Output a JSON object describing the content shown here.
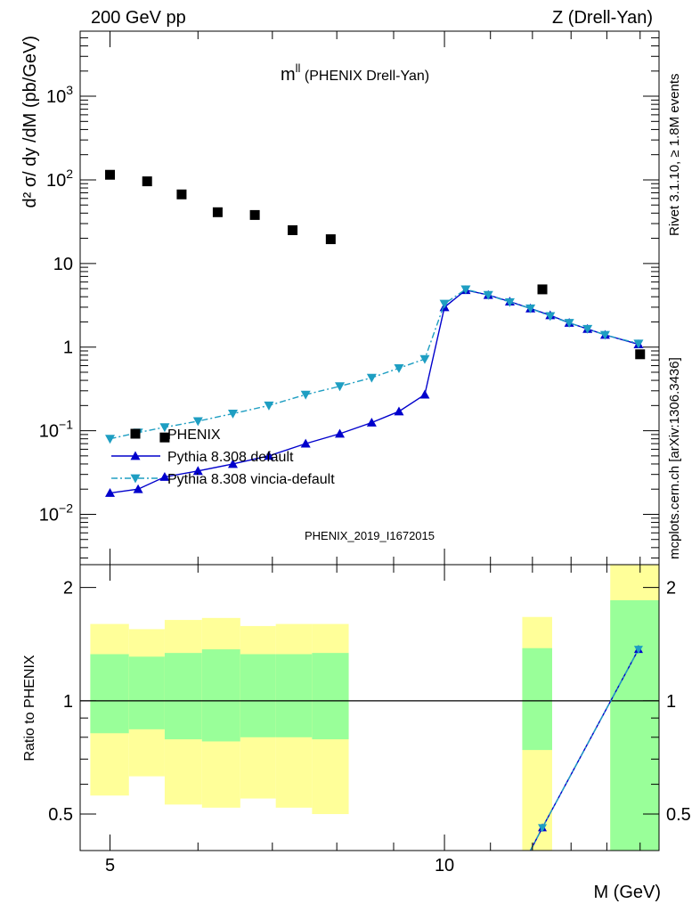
{
  "header": {
    "left": "200 GeV pp",
    "right": "Z (Drell-Yan)"
  },
  "side_labels": {
    "rivet": "Rivet 3.1.10, ≥ 1.8M events",
    "mcplots": "mcplots.cern.ch [arXiv:1306.3436]"
  },
  "watermark": "PHENIX_2019_I1672015",
  "chart_data": [
    {
      "type": "scatter",
      "panel": "main",
      "title_main": "m",
      "title_sup": "ll",
      "title_rest": " (PHENIX Drell-Yan)",
      "ylabel": "d² σ/ dy /dM (pb/GeV)",
      "yscale": "log",
      "ylim": [
        0.0025,
        6000
      ],
      "xscale": "log",
      "xlim": [
        4.7,
        15.6
      ],
      "yticks": [
        {
          "value": 0.01,
          "base": "10",
          "exp": "−2"
        },
        {
          "value": 0.1,
          "base": "10",
          "exp": "−1"
        },
        {
          "value": 1,
          "base": "1",
          "exp": ""
        },
        {
          "value": 10,
          "base": "10",
          "exp": ""
        },
        {
          "value": 100,
          "base": "10",
          "exp": "2"
        },
        {
          "value": 1000,
          "base": "10",
          "exp": "3"
        }
      ],
      "legend_position": "left-middle",
      "series": [
        {
          "name": "PHENIX",
          "marker": "square",
          "color": "#000000",
          "x": [
            5.0,
            5.4,
            5.8,
            6.25,
            6.75,
            7.3,
            7.9,
            5.6,
            12.25,
            15.0
          ],
          "y": [
            115,
            96,
            67,
            41,
            38,
            25,
            19.5,
            0.083,
            4.9,
            0.82
          ]
        },
        {
          "name": "Pythia 8.308 default",
          "marker": "triangle-up",
          "color": "#0000cc",
          "line": "solid",
          "x": [
            5.0,
            5.3,
            5.6,
            6.0,
            6.45,
            6.95,
            7.5,
            8.05,
            8.6,
            9.1,
            9.6,
            10.0,
            10.45,
            10.95,
            11.45,
            11.95,
            12.45,
            12.95,
            13.45,
            13.95,
            14.95
          ],
          "y": [
            0.018,
            0.02,
            0.028,
            0.033,
            0.04,
            0.05,
            0.07,
            0.092,
            0.125,
            0.17,
            0.27,
            3.0,
            4.8,
            4.2,
            3.5,
            2.9,
            2.4,
            1.95,
            1.65,
            1.4,
            1.08
          ]
        },
        {
          "name": "Pythia 8.308 vincia-default",
          "marker": "triangle-down",
          "color": "#1e9ec2",
          "line": "dashdot",
          "x": [
            5.0,
            5.3,
            5.6,
            6.0,
            6.45,
            6.95,
            7.5,
            8.05,
            8.6,
            9.1,
            9.6,
            10.0,
            10.45,
            10.95,
            11.45,
            11.95,
            12.45,
            12.95,
            13.45,
            13.95,
            14.95
          ],
          "y": [
            0.08,
            0.095,
            0.11,
            0.13,
            0.16,
            0.2,
            0.27,
            0.34,
            0.43,
            0.56,
            0.72,
            3.3,
            4.9,
            4.2,
            3.45,
            2.9,
            2.35,
            1.95,
            1.65,
            1.4,
            1.1
          ]
        }
      ]
    },
    {
      "type": "line",
      "panel": "ratio",
      "ylabel": "Ratio to PHENIX",
      "xlabel": "M (GeV)",
      "yscale": "log",
      "ylim": [
        0.4,
        2.3
      ],
      "xscale": "log",
      "xlim": [
        4.7,
        15.6
      ],
      "yticks": [
        {
          "value": 0.5,
          "label": "0.5"
        },
        {
          "value": 1,
          "label": "1"
        },
        {
          "value": 2,
          "label": "2"
        }
      ],
      "xticks": [
        {
          "value": 5,
          "label": "5"
        },
        {
          "value": 10,
          "label": "10"
        }
      ],
      "reference_line": 1,
      "bands": [
        {
          "x0": 4.8,
          "x1": 5.2,
          "green": [
            0.82,
            1.33
          ],
          "yellow": [
            0.56,
            1.6
          ]
        },
        {
          "x0": 5.2,
          "x1": 5.6,
          "green": [
            0.84,
            1.31
          ],
          "yellow": [
            0.63,
            1.55
          ]
        },
        {
          "x0": 5.6,
          "x1": 6.05,
          "green": [
            0.79,
            1.34
          ],
          "yellow": [
            0.53,
            1.64
          ]
        },
        {
          "x0": 6.05,
          "x1": 6.55,
          "green": [
            0.78,
            1.37
          ],
          "yellow": [
            0.52,
            1.66
          ]
        },
        {
          "x0": 6.55,
          "x1": 7.05,
          "green": [
            0.8,
            1.33
          ],
          "yellow": [
            0.55,
            1.58
          ]
        },
        {
          "x0": 7.05,
          "x1": 7.6,
          "green": [
            0.8,
            1.33
          ],
          "yellow": [
            0.52,
            1.6
          ]
        },
        {
          "x0": 7.6,
          "x1": 8.2,
          "green": [
            0.79,
            1.34
          ],
          "yellow": [
            0.5,
            1.6
          ]
        },
        {
          "x0": 11.75,
          "x1": 12.5,
          "green": [
            0.74,
            1.38
          ],
          "yellow": [
            0.35,
            1.67
          ]
        },
        {
          "x0": 14.1,
          "x1": 15.6,
          "green": [
            0.35,
            1.85
          ],
          "yellow": [
            0.35,
            2.3
          ]
        }
      ],
      "series": [
        {
          "name": "Pythia 8.308 default",
          "marker": "triangle-up",
          "color": "#0000cc",
          "line": "solid",
          "x": [
            11.95,
            12.25,
            14.95
          ],
          "y": [
            0.4,
            0.46,
            1.37
          ]
        },
        {
          "name": "Pythia 8.308 vincia-default",
          "marker": "triangle-down",
          "color": "#1e9ec2",
          "line": "dashdot",
          "x": [
            11.95,
            12.25,
            14.95
          ],
          "y": [
            0.4,
            0.46,
            1.37
          ]
        }
      ]
    }
  ]
}
